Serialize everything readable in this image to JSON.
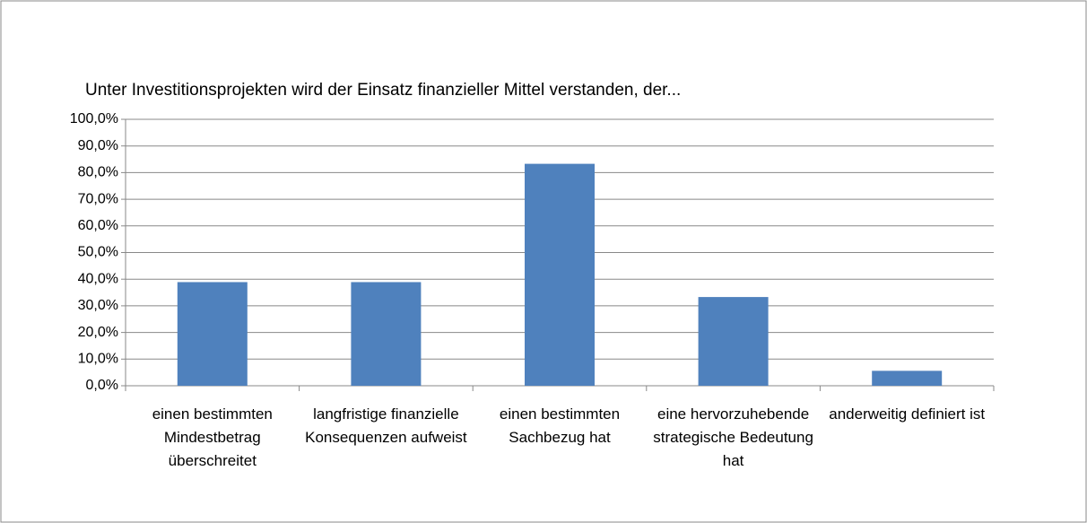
{
  "chart_data": {
    "type": "bar",
    "title": "Unter Investitionsprojekten wird der Einsatz finanzieller Mittel  verstanden, der...",
    "categories": [
      "einen bestimmten Mindestbetrag überschreitet",
      "langfristige finanzielle Konsequenzen aufweist",
      "einen bestimmten Sachbezug hat",
      "eine hervorzuhebende strategische Bedeutung hat",
      "anderweitig definiert ist"
    ],
    "values": [
      38.9,
      38.9,
      83.3,
      33.3,
      5.6
    ],
    "color": "#4f81bd",
    "ylim": [
      0,
      100
    ],
    "yticks": [
      {
        "value": 0,
        "label": "0,0%"
      },
      {
        "value": 10,
        "label": "10,0%"
      },
      {
        "value": 20,
        "label": "20,0%"
      },
      {
        "value": 30,
        "label": "30,0%"
      },
      {
        "value": 40,
        "label": "40,0%"
      },
      {
        "value": 50,
        "label": "50,0%"
      },
      {
        "value": 60,
        "label": "60,0%"
      },
      {
        "value": 70,
        "label": "70,0%"
      },
      {
        "value": 80,
        "label": "80,0%"
      },
      {
        "value": 90,
        "label": "90,0%"
      },
      {
        "value": 100,
        "label": "100,0%"
      }
    ],
    "grid": true
  }
}
